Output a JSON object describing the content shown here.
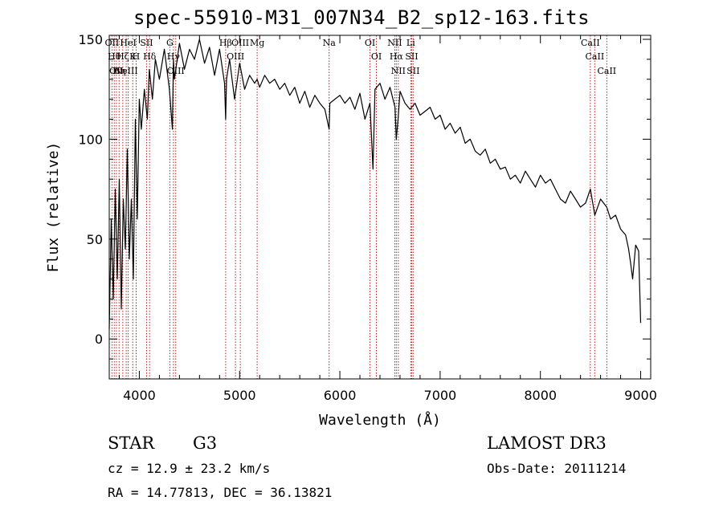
{
  "title": "spec-55910-M31_007N34_B2_sp12-163.fits",
  "chart_data": {
    "type": "line",
    "title": "spec-55910-M31_007N34_B2_sp12-163.fits",
    "xlabel": "Wavelength (Å)",
    "ylabel": "Flux (relative)",
    "xlim": [
      3700,
      9100
    ],
    "ylim": [
      -20,
      152
    ],
    "xticks": [
      4000,
      5000,
      6000,
      7000,
      8000,
      9000
    ],
    "yticks": [
      0,
      50,
      100,
      150
    ],
    "grid": false,
    "series": [
      {
        "name": "flux",
        "x": [
          3700,
          3720,
          3740,
          3760,
          3780,
          3800,
          3820,
          3840,
          3860,
          3880,
          3900,
          3920,
          3940,
          3960,
          3980,
          4000,
          4020,
          4050,
          4080,
          4100,
          4130,
          4160,
          4200,
          4250,
          4300,
          4330,
          4340,
          4350,
          4400,
          4450,
          4500,
          4550,
          4600,
          4650,
          4700,
          4750,
          4800,
          4850,
          4861,
          4870,
          4900,
          4950,
          5000,
          5050,
          5100,
          5150,
          5175,
          5200,
          5250,
          5300,
          5350,
          5400,
          5450,
          5500,
          5550,
          5600,
          5650,
          5700,
          5750,
          5800,
          5850,
          5893,
          5900,
          5950,
          6000,
          6050,
          6100,
          6150,
          6200,
          6250,
          6300,
          6330,
          6350,
          6400,
          6450,
          6500,
          6550,
          6563,
          6580,
          6600,
          6650,
          6700,
          6750,
          6800,
          6850,
          6900,
          6950,
          7000,
          7050,
          7100,
          7150,
          7200,
          7250,
          7300,
          7350,
          7400,
          7450,
          7500,
          7550,
          7600,
          7650,
          7700,
          7750,
          7800,
          7850,
          7900,
          7950,
          8000,
          8050,
          8100,
          8150,
          8200,
          8250,
          8300,
          8350,
          8400,
          8450,
          8498,
          8542,
          8600,
          8662,
          8700,
          8750,
          8800,
          8850,
          8880,
          8900,
          8920,
          8950,
          8980,
          9000
        ],
        "y": [
          5,
          60,
          20,
          75,
          30,
          80,
          15,
          70,
          45,
          95,
          40,
          70,
          30,
          110,
          60,
          120,
          105,
          125,
          110,
          135,
          120,
          140,
          130,
          145,
          125,
          105,
          140,
          130,
          148,
          135,
          145,
          140,
          150,
          138,
          146,
          132,
          145,
          128,
          110,
          130,
          140,
          120,
          138,
          125,
          132,
          128,
          130,
          126,
          132,
          128,
          130,
          125,
          128,
          122,
          126,
          118,
          124,
          116,
          122,
          118,
          115,
          105,
          118,
          120,
          122,
          118,
          121,
          115,
          123,
          110,
          118,
          85,
          125,
          128,
          120,
          126,
          116,
          100,
          110,
          124,
          118,
          115,
          118,
          112,
          114,
          116,
          110,
          112,
          105,
          108,
          103,
          106,
          98,
          100,
          94,
          92,
          95,
          88,
          90,
          85,
          86,
          80,
          82,
          78,
          84,
          80,
          76,
          82,
          78,
          80,
          75,
          70,
          68,
          74,
          70,
          66,
          68,
          75,
          62,
          70,
          66,
          60,
          62,
          55,
          52,
          45,
          38,
          30,
          47,
          44,
          8
        ]
      }
    ],
    "line_markers": [
      {
        "wavelength": 3727,
        "label": "OII"
      },
      {
        "wavelength": 3750,
        "label": "Hθ"
      },
      {
        "wavelength": 3771,
        "label": "OII"
      },
      {
        "wavelength": 3798,
        "label": "Hη"
      },
      {
        "wavelength": 3835,
        "label": "Hζ"
      },
      {
        "wavelength": 3869,
        "label": "NeIII"
      },
      {
        "wavelength": 3889,
        "label": "HeI"
      },
      {
        "wavelength": 3934,
        "label": "K"
      },
      {
        "wavelength": 3968,
        "label": "H"
      },
      {
        "wavelength": 4072,
        "label": "SII"
      },
      {
        "wavelength": 4102,
        "label": "Hδ"
      },
      {
        "wavelength": 4304,
        "label": "G"
      },
      {
        "wavelength": 4340,
        "label": "Hγ"
      },
      {
        "wavelength": 4363,
        "label": "OIII"
      },
      {
        "wavelength": 4861,
        "label": "Hβ"
      },
      {
        "wavelength": 4959,
        "label": "OIII"
      },
      {
        "wavelength": 5007,
        "label": "OIII"
      },
      {
        "wavelength": 5175,
        "label": "Mg"
      },
      {
        "wavelength": 5893,
        "label": "Na"
      },
      {
        "wavelength": 6300,
        "label": "OI"
      },
      {
        "wavelength": 6364,
        "label": "OI"
      },
      {
        "wavelength": 6548,
        "label": "NII"
      },
      {
        "wavelength": 6563,
        "label": "Hα"
      },
      {
        "wavelength": 6583,
        "label": "NII"
      },
      {
        "wavelength": 6707,
        "label": "Li"
      },
      {
        "wavelength": 6716,
        "label": "SII"
      },
      {
        "wavelength": 6731,
        "label": "SII"
      },
      {
        "wavelength": 8498,
        "label": "CaII"
      },
      {
        "wavelength": 8542,
        "label": "CaII"
      },
      {
        "wavelength": 8662,
        "label": "CaII"
      }
    ],
    "marker_color": "#b22222",
    "line_color": "#000000"
  },
  "info": {
    "class_label": "STAR",
    "subclass_label": "G3",
    "survey_label": "LAMOST DR3",
    "cz_label": "cz =  12.9 ± 23.2 km/s",
    "obsdate_label": "Obs-Date: 20111214",
    "coords_label": "RA =  14.77813, DEC =  36.13821"
  }
}
